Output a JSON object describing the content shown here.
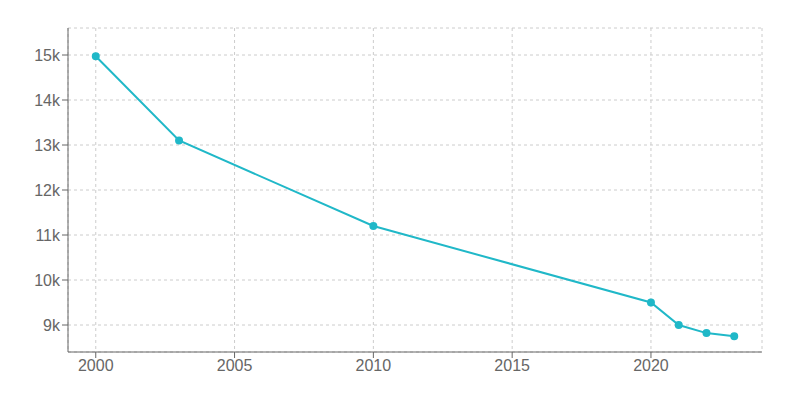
{
  "chart_data": {
    "type": "line",
    "x": [
      2000,
      2003,
      2010,
      2020,
      2021,
      2022,
      2023
    ],
    "values": [
      14972,
      13100,
      11200,
      9500,
      9000,
      8820,
      8750
    ],
    "color": "#20b8c8",
    "marker": "circle",
    "xlim": [
      1999.0,
      2024.0
    ],
    "ylim": [
      8400,
      15600
    ],
    "xticks": [
      2000,
      2005,
      2010,
      2015,
      2020
    ],
    "yticks": [
      {
        "value": 9000,
        "label": "9k"
      },
      {
        "value": 10000,
        "label": "10k"
      },
      {
        "value": 11000,
        "label": "11k"
      },
      {
        "value": 12000,
        "label": "12k"
      },
      {
        "value": 13000,
        "label": "13k"
      },
      {
        "value": 14000,
        "label": "14k"
      },
      {
        "value": 15000,
        "label": "15k"
      }
    ],
    "grid": true
  }
}
